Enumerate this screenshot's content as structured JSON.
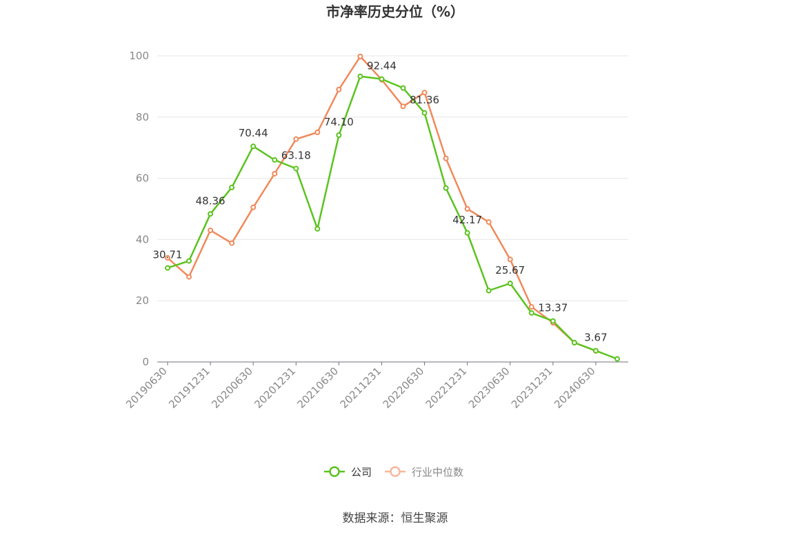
{
  "chart_data": {
    "type": "line",
    "title": "市净率历史分位（%）",
    "xlabel": "",
    "ylabel": "",
    "ylim": [
      0,
      100
    ],
    "yticks": [
      0,
      20,
      40,
      60,
      80,
      100
    ],
    "grid": true,
    "legend": "bottom",
    "x": [
      "20190630",
      "20190930",
      "20191231",
      "20200331",
      "20200630",
      "20200930",
      "20201231",
      "20210331",
      "20210630",
      "20210930",
      "20211231",
      "20220331",
      "20220630",
      "20220930",
      "20221231",
      "20230331",
      "20230630",
      "20230930",
      "20231231",
      "20240331",
      "20240630",
      "20240930"
    ],
    "x_tick_labels": [
      "20190630",
      "20191231",
      "20200630",
      "20201231",
      "20210630",
      "20211231",
      "20220630",
      "20221231",
      "20230630",
      "20231231",
      "20240630"
    ],
    "series": [
      {
        "name": "公司",
        "color": "#5ac31e",
        "values": [
          30.71,
          33.0,
          48.36,
          57.0,
          70.44,
          66.0,
          63.18,
          43.5,
          74.1,
          93.3,
          92.44,
          89.5,
          81.36,
          56.8,
          42.17,
          23.3,
          25.67,
          16.0,
          13.37,
          6.3,
          3.67,
          1.0
        ],
        "labels": [
          {
            "i": 0,
            "text": "30.71"
          },
          {
            "i": 2,
            "text": "48.36"
          },
          {
            "i": 4,
            "text": "70.44"
          },
          {
            "i": 6,
            "text": "63.18"
          },
          {
            "i": 8,
            "text": "74.10"
          },
          {
            "i": 10,
            "text": "92.44"
          },
          {
            "i": 12,
            "text": "81.36"
          },
          {
            "i": 14,
            "text": "42.17"
          },
          {
            "i": 16,
            "text": "25.67"
          },
          {
            "i": 18,
            "text": "13.37"
          },
          {
            "i": 20,
            "text": "3.67"
          }
        ]
      },
      {
        "name": "行业中位数",
        "color": "#f0895a",
        "values": [
          34.0,
          27.8,
          43.0,
          38.8,
          50.5,
          61.5,
          72.8,
          75.0,
          89.0,
          99.8,
          92.2,
          83.5,
          88.0,
          66.5,
          50.0,
          45.7,
          33.5,
          18.0,
          12.8,
          6.3,
          3.6,
          null
        ]
      }
    ],
    "source_text": "数据来源：恒生聚源"
  }
}
